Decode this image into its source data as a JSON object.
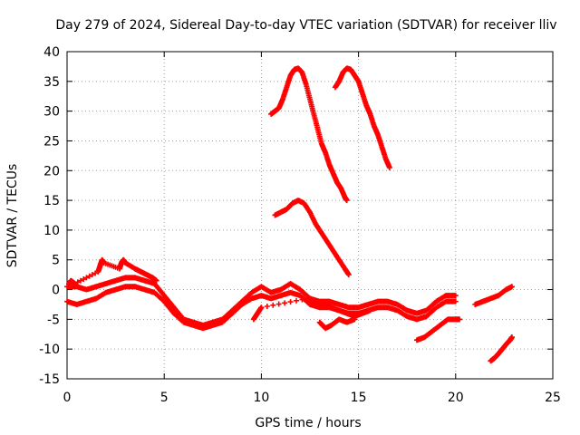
{
  "chart_data": {
    "type": "scatter",
    "title": "Day 279 of 2024, Sidereal Day-to-day VTEC variation (SDTVAR) for receiver lliv",
    "xlabel": "GPS time / hours",
    "ylabel": "SDTVAR / TECUs",
    "xlim": [
      0,
      25
    ],
    "ylim": [
      -15,
      40
    ],
    "xticks": [
      0,
      5,
      10,
      15,
      20,
      25
    ],
    "yticks": [
      -15,
      -10,
      -5,
      0,
      5,
      10,
      15,
      20,
      25,
      30,
      35,
      40
    ],
    "grid": true,
    "marker": "plus",
    "color": "#ff0000",
    "series": [
      {
        "name": "main-band-upper",
        "x": [
          0,
          0.5,
          1,
          1.5,
          2,
          2.5,
          3,
          3.5,
          4,
          4.5,
          5,
          5.5,
          6,
          6.5,
          7,
          7.5,
          8,
          8.5,
          9,
          9.5,
          10,
          10.5,
          11,
          11.5,
          12,
          12.5,
          13,
          13.5,
          14,
          14.5,
          15,
          15.5,
          16,
          16.5,
          17,
          17.5,
          18,
          18.5,
          19,
          19.5,
          20
        ],
        "y": [
          0.5,
          0.5,
          0,
          0.5,
          1,
          1.5,
          2,
          2,
          1.5,
          1,
          -1,
          -3,
          -5,
          -5.5,
          -6,
          -5.5,
          -5,
          -3.5,
          -2,
          -0.5,
          0.5,
          -0.5,
          0,
          1,
          0,
          -1.5,
          -2,
          -2,
          -2.5,
          -3,
          -3,
          -2.5,
          -2,
          -2,
          -2.5,
          -3.5,
          -4,
          -3.5,
          -2,
          -1,
          -1
        ]
      },
      {
        "name": "main-band-lower",
        "x": [
          0,
          0.5,
          1,
          1.5,
          2,
          2.5,
          3,
          3.5,
          4,
          4.5,
          5,
          5.5,
          6,
          6.5,
          7,
          7.5,
          8,
          8.5,
          9,
          9.5,
          10,
          10.5,
          11,
          11.5,
          12,
          12.5,
          13,
          13.5,
          14,
          14.5,
          15,
          15.5,
          16,
          16.5,
          17,
          17.5,
          18,
          18.5,
          19,
          19.5,
          20
        ],
        "y": [
          -2,
          -2.5,
          -2,
          -1.5,
          -0.5,
          0,
          0.5,
          0.5,
          0,
          -0.5,
          -2,
          -4,
          -5.5,
          -6,
          -6.5,
          -6,
          -5.5,
          -4,
          -2.5,
          -1.5,
          -1,
          -1.5,
          -1,
          -0.5,
          -1,
          -2.5,
          -3,
          -3,
          -3.5,
          -4,
          -4,
          -3.5,
          -3,
          -3,
          -3.5,
          -4.5,
          -5,
          -4.5,
          -3,
          -2,
          -2
        ]
      },
      {
        "name": "early-spikes",
        "x": [
          0.1,
          0.2,
          0.4,
          1.6,
          1.7,
          1.8,
          1.9,
          2.7,
          2.8,
          2.9,
          3.0,
          3.5,
          3.8,
          4.1,
          4.4,
          4.6
        ],
        "y": [
          1,
          1.5,
          1,
          3,
          4,
          5,
          4.5,
          3.5,
          4.5,
          5,
          4.5,
          3.5,
          3,
          2.5,
          2,
          1.5
        ]
      },
      {
        "name": "arc-1-upper",
        "x": [
          10.5,
          10.7,
          10.9,
          11.1,
          11.3,
          11.5,
          11.7,
          11.9,
          12.1,
          12.3,
          12.5,
          12.7,
          12.9,
          13.1,
          13.3,
          13.5,
          13.7,
          13.9,
          14.1,
          14.3,
          14.4
        ],
        "y": [
          29.5,
          30,
          30.5,
          32,
          34,
          36,
          37,
          37.2,
          36.5,
          34.5,
          32,
          29.5,
          27,
          24.5,
          23,
          21,
          19.5,
          18,
          17,
          15.5,
          15
        ]
      },
      {
        "name": "arc-2-upper",
        "x": [
          13.8,
          14.0,
          14.2,
          14.4,
          14.6,
          14.8,
          15.0,
          15.2,
          15.4,
          15.6,
          15.8,
          16.0,
          16.2,
          16.4,
          16.6
        ],
        "y": [
          34,
          35,
          36.5,
          37.2,
          37,
          36,
          35,
          33,
          31,
          29.5,
          27.5,
          26,
          24,
          22,
          20.5
        ]
      },
      {
        "name": "arc-1-lower",
        "x": [
          10.7,
          11.0,
          11.3,
          11.6,
          11.9,
          12.2,
          12.5,
          12.8,
          13.1,
          13.4,
          13.7,
          14.0,
          14.3,
          14.5
        ],
        "y": [
          12.5,
          13,
          13.5,
          14.5,
          15,
          14.5,
          13,
          11,
          9.5,
          8,
          6.5,
          5,
          3.5,
          2.5
        ]
      },
      {
        "name": "mid-segments",
        "x": [
          9.6,
          9.8,
          10.0,
          12.4,
          12.8,
          13.2,
          13.6,
          14.0,
          14.4,
          14.8,
          15.2,
          15.6
        ],
        "y": [
          -5,
          -4,
          -3,
          -1.5,
          -2,
          -2.5,
          -3,
          -3.5,
          -4,
          -4.5,
          -4,
          -3.5
        ]
      },
      {
        "name": "dip-segment",
        "x": [
          13.0,
          13.3,
          13.6,
          14.0,
          14.4,
          14.8
        ],
        "y": [
          -5.5,
          -6.5,
          -6,
          -5,
          -5.5,
          -5
        ]
      },
      {
        "name": "late-segment-a",
        "x": [
          18.0,
          18.4,
          18.8,
          19.2,
          19.6,
          20.0,
          20.2
        ],
        "y": [
          -8.5,
          -8,
          -7,
          -6,
          -5,
          -5,
          -5
        ]
      },
      {
        "name": "late-segment-b",
        "x": [
          21.0,
          21.4,
          21.8,
          22.2,
          22.6,
          22.9
        ],
        "y": [
          -2.5,
          -2,
          -1.5,
          -1,
          0,
          0.5
        ]
      },
      {
        "name": "late-segment-c",
        "x": [
          21.8,
          22.0,
          22.2,
          22.4,
          22.6,
          22.8,
          22.9
        ],
        "y": [
          -12,
          -11.5,
          -10.8,
          -10,
          -9.2,
          -8.5,
          -8
        ]
      }
    ]
  }
}
